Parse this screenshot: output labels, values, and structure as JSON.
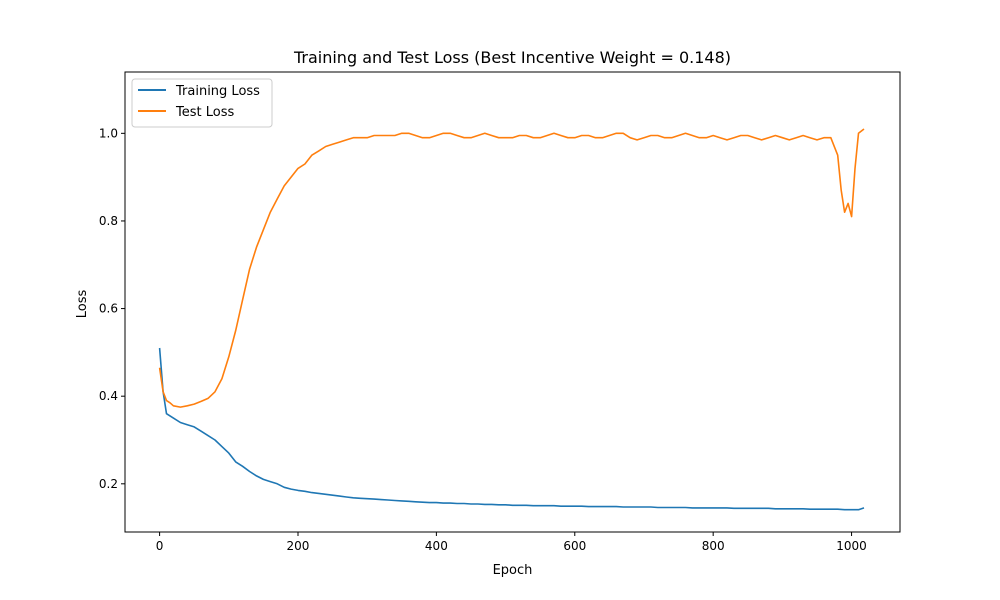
{
  "chart_data": {
    "type": "line",
    "title": "Training and Test Loss (Best Incentive Weight = 0.148)",
    "xlabel": "Epoch",
    "ylabel": "Loss",
    "xlim": [
      -50,
      1070
    ],
    "ylim": [
      0.09,
      1.14
    ],
    "xticks": [
      0,
      200,
      400,
      600,
      800,
      1000
    ],
    "yticks": [
      0.2,
      0.4,
      0.6,
      0.8,
      1.0
    ],
    "ytick_labels": [
      "0.2",
      "0.4",
      "0.6",
      "0.8",
      "1.0"
    ],
    "grid": false,
    "legend_position": "upper-left",
    "series": [
      {
        "name": "Training Loss",
        "color": "#1f77b4",
        "x": [
          0,
          5,
          10,
          20,
          30,
          40,
          50,
          60,
          70,
          80,
          90,
          100,
          110,
          120,
          130,
          140,
          150,
          160,
          170,
          180,
          190,
          200,
          210,
          220,
          230,
          240,
          250,
          260,
          270,
          280,
          290,
          300,
          310,
          320,
          330,
          340,
          350,
          360,
          370,
          380,
          390,
          400,
          410,
          420,
          430,
          440,
          450,
          460,
          470,
          480,
          490,
          500,
          510,
          520,
          530,
          540,
          550,
          560,
          570,
          580,
          590,
          600,
          610,
          620,
          630,
          640,
          650,
          660,
          670,
          680,
          690,
          700,
          710,
          720,
          730,
          740,
          750,
          760,
          770,
          780,
          790,
          800,
          810,
          820,
          830,
          840,
          850,
          860,
          870,
          880,
          890,
          900,
          910,
          920,
          930,
          940,
          950,
          960,
          970,
          980,
          990,
          1000,
          1010,
          1018
        ],
        "y": [
          0.51,
          0.41,
          0.36,
          0.35,
          0.34,
          0.335,
          0.33,
          0.32,
          0.31,
          0.3,
          0.285,
          0.27,
          0.25,
          0.24,
          0.228,
          0.218,
          0.21,
          0.205,
          0.2,
          0.192,
          0.188,
          0.185,
          0.183,
          0.18,
          0.178,
          0.176,
          0.174,
          0.172,
          0.17,
          0.168,
          0.167,
          0.166,
          0.165,
          0.164,
          0.163,
          0.162,
          0.161,
          0.16,
          0.159,
          0.158,
          0.157,
          0.157,
          0.156,
          0.156,
          0.155,
          0.155,
          0.154,
          0.154,
          0.153,
          0.153,
          0.152,
          0.152,
          0.151,
          0.151,
          0.151,
          0.15,
          0.15,
          0.15,
          0.15,
          0.149,
          0.149,
          0.149,
          0.149,
          0.148,
          0.148,
          0.148,
          0.148,
          0.148,
          0.147,
          0.147,
          0.147,
          0.147,
          0.147,
          0.146,
          0.146,
          0.146,
          0.146,
          0.146,
          0.145,
          0.145,
          0.145,
          0.145,
          0.145,
          0.145,
          0.144,
          0.144,
          0.144,
          0.144,
          0.144,
          0.144,
          0.143,
          0.143,
          0.143,
          0.143,
          0.143,
          0.142,
          0.142,
          0.142,
          0.142,
          0.142,
          0.141,
          0.141,
          0.141,
          0.145
        ]
      },
      {
        "name": "Test Loss",
        "color": "#ff7f0e",
        "x": [
          0,
          5,
          10,
          15,
          20,
          30,
          40,
          50,
          60,
          70,
          80,
          90,
          100,
          110,
          120,
          130,
          140,
          150,
          160,
          170,
          180,
          190,
          200,
          210,
          220,
          230,
          240,
          250,
          260,
          270,
          280,
          290,
          300,
          310,
          320,
          330,
          340,
          350,
          360,
          370,
          380,
          390,
          400,
          410,
          420,
          430,
          440,
          450,
          460,
          470,
          480,
          490,
          500,
          510,
          520,
          530,
          540,
          550,
          560,
          570,
          580,
          590,
          600,
          610,
          620,
          630,
          640,
          650,
          660,
          670,
          680,
          690,
          700,
          710,
          720,
          730,
          740,
          750,
          760,
          770,
          780,
          790,
          800,
          810,
          820,
          830,
          840,
          850,
          860,
          870,
          880,
          890,
          900,
          910,
          920,
          930,
          940,
          950,
          960,
          970,
          980,
          985,
          990,
          995,
          1000,
          1005,
          1010,
          1018
        ],
        "y": [
          0.465,
          0.41,
          0.39,
          0.385,
          0.378,
          0.375,
          0.378,
          0.382,
          0.388,
          0.395,
          0.41,
          0.44,
          0.49,
          0.55,
          0.62,
          0.69,
          0.74,
          0.78,
          0.82,
          0.85,
          0.88,
          0.9,
          0.92,
          0.93,
          0.95,
          0.96,
          0.97,
          0.975,
          0.98,
          0.985,
          0.99,
          0.99,
          0.99,
          0.995,
          0.995,
          0.995,
          0.995,
          1.0,
          1.0,
          0.995,
          0.99,
          0.99,
          0.995,
          1.0,
          1.0,
          0.995,
          0.99,
          0.99,
          0.995,
          1.0,
          0.995,
          0.99,
          0.99,
          0.99,
          0.995,
          0.995,
          0.99,
          0.99,
          0.995,
          1.0,
          0.995,
          0.99,
          0.99,
          0.995,
          0.995,
          0.99,
          0.99,
          0.995,
          1.0,
          1.0,
          0.99,
          0.985,
          0.99,
          0.995,
          0.995,
          0.99,
          0.99,
          0.995,
          1.0,
          0.995,
          0.99,
          0.99,
          0.995,
          0.99,
          0.985,
          0.99,
          0.995,
          0.995,
          0.99,
          0.985,
          0.99,
          0.995,
          0.99,
          0.985,
          0.99,
          0.995,
          0.99,
          0.985,
          0.99,
          0.99,
          0.95,
          0.87,
          0.82,
          0.84,
          0.81,
          0.92,
          1.0,
          1.01
        ]
      }
    ]
  }
}
